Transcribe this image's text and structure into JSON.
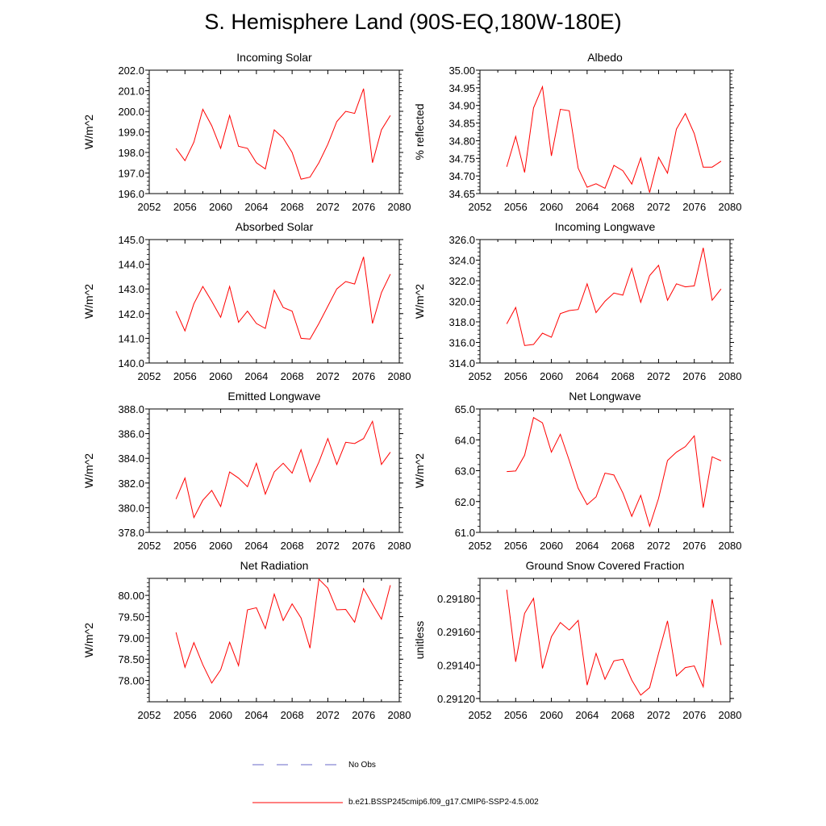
{
  "title": "S. Hemisphere Land (90S-EQ,180W-180E)",
  "colors": {
    "model": "#ff0000",
    "obs": "#6a6ac8",
    "axis": "#000000"
  },
  "legend": {
    "obs_label": "No Obs",
    "model_label": "b.e21.BSSP245cmip6.f09_g17.CMIP6-SSP2-4.5.002"
  },
  "chart_data": [
    {
      "type": "line",
      "title": "Incoming Solar",
      "xlabel": "",
      "ylabel": "W/m^2",
      "xlim": [
        2052,
        2080
      ],
      "ylim": [
        196,
        202
      ],
      "x_ticks": [
        2052,
        2056,
        2060,
        2064,
        2068,
        2072,
        2076,
        2080
      ],
      "x_tick_labels": [
        "2052",
        "2056",
        "2060",
        "2064",
        "2068",
        "2072",
        "2076",
        "2080"
      ],
      "y_ticks": [
        196,
        197,
        198,
        199,
        200,
        201,
        202
      ],
      "y_tick_labels": [
        "196.0",
        "197.0",
        "198.0",
        "199.0",
        "200.0",
        "201.0",
        "202.0"
      ],
      "series": [
        {
          "name": "b.e21.BSSP245cmip6.f09_g17.CMIP6-SSP2-4.5.002",
          "x": [
            2055,
            2056,
            2057,
            2058,
            2059,
            2060,
            2061,
            2062,
            2063,
            2064,
            2065,
            2066,
            2067,
            2068,
            2069,
            2070,
            2071,
            2072,
            2073,
            2074,
            2075,
            2076,
            2077,
            2078,
            2079
          ],
          "y": [
            198.2,
            197.6,
            198.5,
            200.1,
            199.3,
            198.2,
            199.8,
            198.3,
            198.2,
            197.5,
            197.2,
            199.1,
            198.7,
            198.0,
            196.7,
            196.8,
            197.5,
            198.4,
            199.5,
            200.0,
            199.9,
            201.1,
            197.5,
            199.1,
            199.8
          ]
        }
      ]
    },
    {
      "type": "line",
      "title": "Albedo",
      "xlabel": "",
      "ylabel": "% reflected",
      "xlim": [
        2052,
        2080
      ],
      "ylim": [
        34.65,
        35.0
      ],
      "x_ticks": [
        2052,
        2056,
        2060,
        2064,
        2068,
        2072,
        2076,
        2080
      ],
      "x_tick_labels": [
        "2052",
        "2056",
        "2060",
        "2064",
        "2068",
        "2072",
        "2076",
        "2080"
      ],
      "y_ticks": [
        34.65,
        34.7,
        34.75,
        34.8,
        34.85,
        34.9,
        34.95,
        35.0
      ],
      "y_tick_labels": [
        "34.65",
        "34.70",
        "34.75",
        "34.80",
        "34.85",
        "34.90",
        "34.95",
        "35.00"
      ],
      "series": [
        {
          "name": "b.e21.BSSP245cmip6.f09_g17.CMIP6-SSP2-4.5.002",
          "x": [
            2055,
            2056,
            2057,
            2058,
            2059,
            2060,
            2061,
            2062,
            2063,
            2064,
            2065,
            2066,
            2067,
            2068,
            2069,
            2070,
            2071,
            2072,
            2073,
            2074,
            2075,
            2076,
            2077,
            2078,
            2079
          ],
          "y": [
            34.726,
            34.812,
            34.71,
            34.893,
            34.953,
            34.757,
            34.889,
            34.885,
            34.722,
            34.668,
            34.678,
            34.665,
            34.73,
            34.715,
            34.677,
            34.751,
            34.653,
            34.753,
            34.708,
            34.833,
            34.877,
            34.82,
            34.725,
            34.725,
            34.742
          ]
        }
      ]
    },
    {
      "type": "line",
      "title": "Absorbed Solar",
      "xlabel": "",
      "ylabel": "W/m^2",
      "xlim": [
        2052,
        2080
      ],
      "ylim": [
        140,
        145
      ],
      "x_ticks": [
        2052,
        2056,
        2060,
        2064,
        2068,
        2072,
        2076,
        2080
      ],
      "x_tick_labels": [
        "2052",
        "2056",
        "2060",
        "2064",
        "2068",
        "2072",
        "2076",
        "2080"
      ],
      "y_ticks": [
        140,
        141,
        142,
        143,
        144,
        145
      ],
      "y_tick_labels": [
        "140.0",
        "141.0",
        "142.0",
        "143.0",
        "144.0",
        "145.0"
      ],
      "series": [
        {
          "name": "b.e21.BSSP245cmip6.f09_g17.CMIP6-SSP2-4.5.002",
          "x": [
            2055,
            2056,
            2057,
            2058,
            2059,
            2060,
            2061,
            2062,
            2063,
            2064,
            2065,
            2066,
            2067,
            2068,
            2069,
            2070,
            2071,
            2072,
            2073,
            2074,
            2075,
            2076,
            2077,
            2078,
            2079
          ],
          "y": [
            142.1,
            141.3,
            142.4,
            143.1,
            142.5,
            141.85,
            143.1,
            141.65,
            142.1,
            141.6,
            141.4,
            142.95,
            142.25,
            142.1,
            141.0,
            140.97,
            141.6,
            142.3,
            143.0,
            143.3,
            143.2,
            144.3,
            141.6,
            142.85,
            143.6
          ]
        }
      ]
    },
    {
      "type": "line",
      "title": "Incoming Longwave",
      "xlabel": "",
      "ylabel": "W/m^2",
      "xlim": [
        2052,
        2080
      ],
      "ylim": [
        314,
        326
      ],
      "x_ticks": [
        2052,
        2056,
        2060,
        2064,
        2068,
        2072,
        2076,
        2080
      ],
      "x_tick_labels": [
        "2052",
        "2056",
        "2060",
        "2064",
        "2068",
        "2072",
        "2076",
        "2080"
      ],
      "y_ticks": [
        314,
        316,
        318,
        320,
        322,
        324,
        326
      ],
      "y_tick_labels": [
        "314.0",
        "316.0",
        "318.0",
        "320.0",
        "322.0",
        "324.0",
        "326.0"
      ],
      "series": [
        {
          "name": "b.e21.BSSP245cmip6.f09_g17.CMIP6-SSP2-4.5.002",
          "x": [
            2055,
            2056,
            2057,
            2058,
            2059,
            2060,
            2061,
            2062,
            2063,
            2064,
            2065,
            2066,
            2067,
            2068,
            2069,
            2070,
            2071,
            2072,
            2073,
            2074,
            2075,
            2076,
            2077,
            2078,
            2079
          ],
          "y": [
            317.8,
            319.4,
            315.7,
            315.8,
            316.9,
            316.5,
            318.8,
            319.1,
            319.2,
            321.7,
            318.9,
            320.0,
            320.8,
            320.6,
            323.2,
            319.9,
            322.5,
            323.5,
            320.1,
            321.7,
            321.4,
            321.5,
            325.2,
            320.1,
            321.2
          ]
        }
      ]
    },
    {
      "type": "line",
      "title": "Emitted Longwave",
      "xlabel": "",
      "ylabel": "W/m^2",
      "xlim": [
        2052,
        2080
      ],
      "ylim": [
        378,
        388
      ],
      "x_ticks": [
        2052,
        2056,
        2060,
        2064,
        2068,
        2072,
        2076,
        2080
      ],
      "x_tick_labels": [
        "2052",
        "2056",
        "2060",
        "2064",
        "2068",
        "2072",
        "2076",
        "2080"
      ],
      "y_ticks": [
        378,
        380,
        382,
        384,
        386,
        388
      ],
      "y_tick_labels": [
        "378.0",
        "380.0",
        "382.0",
        "384.0",
        "386.0",
        "388.0"
      ],
      "series": [
        {
          "name": "b.e21.BSSP245cmip6.f09_g17.CMIP6-SSP2-4.5.002",
          "x": [
            2055,
            2056,
            2057,
            2058,
            2059,
            2060,
            2061,
            2062,
            2063,
            2064,
            2065,
            2066,
            2067,
            2068,
            2069,
            2070,
            2071,
            2072,
            2073,
            2074,
            2075,
            2076,
            2077,
            2078,
            2079
          ],
          "y": [
            380.7,
            382.4,
            379.2,
            380.6,
            381.4,
            380.1,
            382.9,
            382.4,
            381.7,
            383.6,
            381.1,
            382.9,
            383.6,
            382.8,
            384.7,
            382.1,
            383.7,
            385.6,
            383.5,
            385.3,
            385.2,
            385.6,
            387.0,
            383.5,
            384.5
          ]
        }
      ]
    },
    {
      "type": "line",
      "title": "Net Longwave",
      "xlabel": "",
      "ylabel": "W/m^2",
      "xlim": [
        2052,
        2080
      ],
      "ylim": [
        61,
        65
      ],
      "x_ticks": [
        2052,
        2056,
        2060,
        2064,
        2068,
        2072,
        2076,
        2080
      ],
      "x_tick_labels": [
        "2052",
        "2056",
        "2060",
        "2064",
        "2068",
        "2072",
        "2076",
        "2080"
      ],
      "y_ticks": [
        61,
        62,
        63,
        64,
        65
      ],
      "y_tick_labels": [
        "61.0",
        "62.0",
        "63.0",
        "64.0",
        "65.0"
      ],
      "series": [
        {
          "name": "b.e21.BSSP245cmip6.f09_g17.CMIP6-SSP2-4.5.002",
          "x": [
            2055,
            2056,
            2057,
            2058,
            2059,
            2060,
            2061,
            2062,
            2063,
            2064,
            2065,
            2066,
            2067,
            2068,
            2069,
            2070,
            2071,
            2072,
            2073,
            2074,
            2075,
            2076,
            2077,
            2078,
            2079
          ],
          "y": [
            62.97,
            62.99,
            63.5,
            64.72,
            64.55,
            63.6,
            64.18,
            63.33,
            62.43,
            61.9,
            62.15,
            62.92,
            62.86,
            62.28,
            61.52,
            62.2,
            61.2,
            62.1,
            63.33,
            63.6,
            63.78,
            64.13,
            61.8,
            63.45,
            63.32
          ]
        }
      ]
    },
    {
      "type": "line",
      "title": "Net Radiation",
      "xlabel": "",
      "ylabel": "W/m^2",
      "xlim": [
        2052,
        2080
      ],
      "ylim": [
        77.5,
        80.4
      ],
      "x_ticks": [
        2052,
        2056,
        2060,
        2064,
        2068,
        2072,
        2076,
        2080
      ],
      "x_tick_labels": [
        "2052",
        "2056",
        "2060",
        "2064",
        "2068",
        "2072",
        "2076",
        "2080"
      ],
      "y_ticks": [
        78.0,
        78.5,
        79.0,
        79.5,
        80.0
      ],
      "y_tick_labels": [
        "78.00",
        "78.50",
        "79.00",
        "79.50",
        "80.00"
      ],
      "series": [
        {
          "name": "b.e21.BSSP245cmip6.f09_g17.CMIP6-SSP2-4.5.002",
          "x": [
            2055,
            2056,
            2057,
            2058,
            2059,
            2060,
            2061,
            2062,
            2063,
            2064,
            2065,
            2066,
            2067,
            2068,
            2069,
            2070,
            2071,
            2072,
            2073,
            2074,
            2075,
            2076,
            2077,
            2078,
            2079
          ],
          "y": [
            79.13,
            78.31,
            78.89,
            78.37,
            77.94,
            78.25,
            78.9,
            78.35,
            79.66,
            79.71,
            79.22,
            80.03,
            79.41,
            79.8,
            79.47,
            78.76,
            80.38,
            80.17,
            79.66,
            79.67,
            79.37,
            80.16,
            79.79,
            79.44,
            80.24
          ]
        }
      ]
    },
    {
      "type": "line",
      "title": "Ground Snow Covered Fraction",
      "xlabel": "",
      "ylabel": "unitless",
      "xlim": [
        2052,
        2080
      ],
      "ylim": [
        0.29118,
        0.29192
      ],
      "x_ticks": [
        2052,
        2056,
        2060,
        2064,
        2068,
        2072,
        2076,
        2080
      ],
      "x_tick_labels": [
        "2052",
        "2056",
        "2060",
        "2064",
        "2068",
        "2072",
        "2076",
        "2080"
      ],
      "y_ticks": [
        0.2912,
        0.2914,
        0.2916,
        0.2918
      ],
      "y_tick_labels": [
        "0.29120",
        "0.29140",
        "0.29160",
        "0.29180"
      ],
      "series": [
        {
          "name": "b.e21.BSSP245cmip6.f09_g17.CMIP6-SSP2-4.5.002",
          "x": [
            2055,
            2056,
            2057,
            2058,
            2059,
            2060,
            2061,
            2062,
            2063,
            2064,
            2065,
            2066,
            2067,
            2068,
            2069,
            2070,
            2071,
            2072,
            2073,
            2074,
            2075,
            2076,
            2077,
            2078,
            2079
          ],
          "y": [
            0.291852,
            0.29142,
            0.29171,
            0.2918,
            0.29138,
            0.29157,
            0.291655,
            0.29161,
            0.291668,
            0.29128,
            0.29147,
            0.291315,
            0.291425,
            0.291435,
            0.29131,
            0.29122,
            0.291265,
            0.29147,
            0.291665,
            0.291335,
            0.291385,
            0.291395,
            0.29127,
            0.291795,
            0.29152
          ]
        }
      ]
    }
  ]
}
